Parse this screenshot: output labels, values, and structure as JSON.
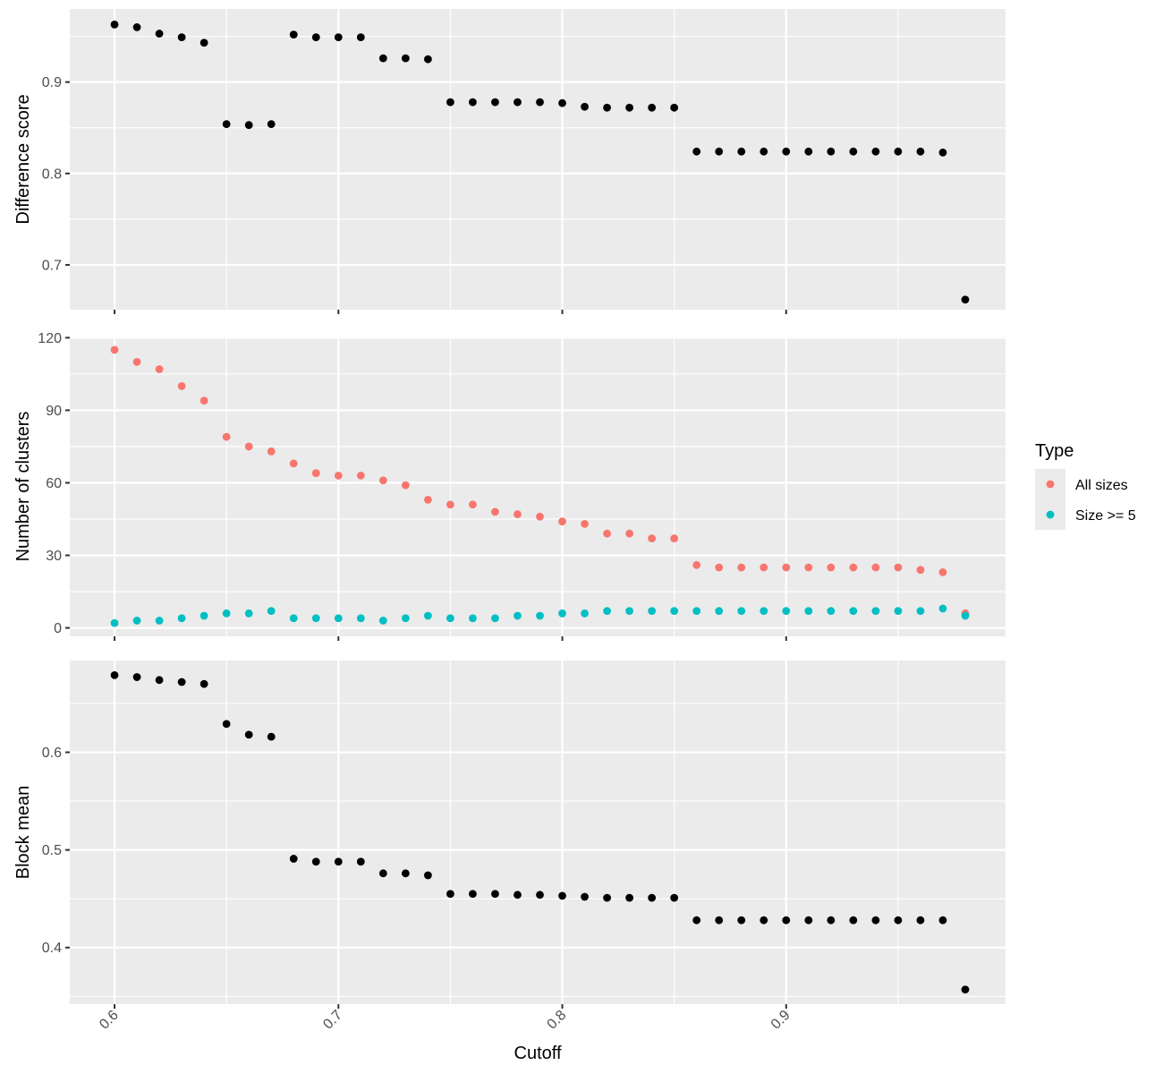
{
  "chart_data": [
    {
      "type": "scatter",
      "panel": "top",
      "ylabel": "Difference score",
      "xlim": [
        0.58,
        0.998
      ],
      "ylim": [
        0.651,
        0.98
      ],
      "xticks": [
        0.6,
        0.7,
        0.8,
        0.9
      ],
      "yticks": [
        0.7,
        0.8,
        0.9
      ],
      "series": [
        {
          "color": "#000000",
          "points": [
            [
              0.6,
              0.963
            ],
            [
              0.61,
              0.96
            ],
            [
              0.62,
              0.953
            ],
            [
              0.63,
              0.949
            ],
            [
              0.64,
              0.943
            ],
            [
              0.65,
              0.854
            ],
            [
              0.66,
              0.853
            ],
            [
              0.67,
              0.854
            ],
            [
              0.68,
              0.952
            ],
            [
              0.69,
              0.949
            ],
            [
              0.7,
              0.949
            ],
            [
              0.71,
              0.949
            ],
            [
              0.72,
              0.926
            ],
            [
              0.73,
              0.926
            ],
            [
              0.74,
              0.925
            ],
            [
              0.75,
              0.878
            ],
            [
              0.76,
              0.878
            ],
            [
              0.77,
              0.878
            ],
            [
              0.78,
              0.878
            ],
            [
              0.79,
              0.878
            ],
            [
              0.8,
              0.877
            ],
            [
              0.81,
              0.873
            ],
            [
              0.82,
              0.872
            ],
            [
              0.83,
              0.872
            ],
            [
              0.84,
              0.872
            ],
            [
              0.85,
              0.872
            ],
            [
              0.86,
              0.824
            ],
            [
              0.87,
              0.824
            ],
            [
              0.88,
              0.824
            ],
            [
              0.89,
              0.824
            ],
            [
              0.9,
              0.824
            ],
            [
              0.91,
              0.824
            ],
            [
              0.92,
              0.824
            ],
            [
              0.93,
              0.824
            ],
            [
              0.94,
              0.824
            ],
            [
              0.95,
              0.824
            ],
            [
              0.96,
              0.824
            ],
            [
              0.97,
              0.823
            ],
            [
              0.98,
              0.662
            ]
          ]
        }
      ]
    },
    {
      "type": "scatter",
      "panel": "middle",
      "ylabel": "Number of clusters",
      "xlim": [
        0.58,
        0.998
      ],
      "ylim": [
        -3.5,
        120.5
      ],
      "xticks": [
        0.6,
        0.7,
        0.8,
        0.9
      ],
      "yticks": [
        0,
        30,
        60,
        90,
        120
      ],
      "series": [
        {
          "name": "All sizes",
          "color": "#F8766D",
          "points": [
            [
              0.6,
              115
            ],
            [
              0.61,
              110
            ],
            [
              0.62,
              107
            ],
            [
              0.63,
              100
            ],
            [
              0.64,
              94
            ],
            [
              0.65,
              79
            ],
            [
              0.66,
              75
            ],
            [
              0.67,
              73
            ],
            [
              0.68,
              68
            ],
            [
              0.69,
              64
            ],
            [
              0.7,
              63
            ],
            [
              0.71,
              63
            ],
            [
              0.72,
              61
            ],
            [
              0.73,
              59
            ],
            [
              0.74,
              53
            ],
            [
              0.75,
              51
            ],
            [
              0.76,
              51
            ],
            [
              0.77,
              48
            ],
            [
              0.78,
              47
            ],
            [
              0.79,
              46
            ],
            [
              0.8,
              44
            ],
            [
              0.81,
              43
            ],
            [
              0.82,
              39
            ],
            [
              0.83,
              39
            ],
            [
              0.84,
              37
            ],
            [
              0.85,
              37
            ],
            [
              0.86,
              26
            ],
            [
              0.87,
              25
            ],
            [
              0.88,
              25
            ],
            [
              0.89,
              25
            ],
            [
              0.9,
              25
            ],
            [
              0.91,
              25
            ],
            [
              0.92,
              25
            ],
            [
              0.93,
              25
            ],
            [
              0.94,
              25
            ],
            [
              0.95,
              25
            ],
            [
              0.96,
              24
            ],
            [
              0.97,
              23
            ],
            [
              0.98,
              6
            ]
          ]
        },
        {
          "name": "Size >= 5",
          "color": "#00BFC4",
          "points": [
            [
              0.6,
              2
            ],
            [
              0.61,
              3
            ],
            [
              0.62,
              3
            ],
            [
              0.63,
              4
            ],
            [
              0.64,
              5
            ],
            [
              0.65,
              6
            ],
            [
              0.66,
              6
            ],
            [
              0.67,
              7
            ],
            [
              0.68,
              4
            ],
            [
              0.69,
              4
            ],
            [
              0.7,
              4
            ],
            [
              0.71,
              4
            ],
            [
              0.72,
              3
            ],
            [
              0.73,
              4
            ],
            [
              0.74,
              5
            ],
            [
              0.75,
              4
            ],
            [
              0.76,
              4
            ],
            [
              0.77,
              4
            ],
            [
              0.78,
              5
            ],
            [
              0.79,
              5
            ],
            [
              0.8,
              6
            ],
            [
              0.81,
              6
            ],
            [
              0.82,
              7
            ],
            [
              0.83,
              7
            ],
            [
              0.84,
              7
            ],
            [
              0.85,
              7
            ],
            [
              0.86,
              7
            ],
            [
              0.87,
              7
            ],
            [
              0.88,
              7
            ],
            [
              0.89,
              7
            ],
            [
              0.9,
              7
            ],
            [
              0.91,
              7
            ],
            [
              0.92,
              7
            ],
            [
              0.93,
              7
            ],
            [
              0.94,
              7
            ],
            [
              0.95,
              7
            ],
            [
              0.96,
              7
            ],
            [
              0.97,
              8
            ],
            [
              0.98,
              5
            ]
          ]
        }
      ]
    },
    {
      "type": "scatter",
      "panel": "bottom",
      "ylabel": "Block mean",
      "xlabel": "Cutoff",
      "xlim": [
        0.58,
        0.998
      ],
      "ylim": [
        0.342,
        0.694
      ],
      "xticks": [
        0.6,
        0.7,
        0.8,
        0.9
      ],
      "yticks": [
        0.4,
        0.5,
        0.6
      ],
      "series": [
        {
          "color": "#000000",
          "points": [
            [
              0.6,
              0.679
            ],
            [
              0.61,
              0.677
            ],
            [
              0.62,
              0.674
            ],
            [
              0.63,
              0.672
            ],
            [
              0.64,
              0.67
            ],
            [
              0.65,
              0.629
            ],
            [
              0.66,
              0.618
            ],
            [
              0.67,
              0.616
            ],
            [
              0.68,
              0.491
            ],
            [
              0.69,
              0.488
            ],
            [
              0.7,
              0.488
            ],
            [
              0.71,
              0.488
            ],
            [
              0.72,
              0.476
            ],
            [
              0.73,
              0.476
            ],
            [
              0.74,
              0.474
            ],
            [
              0.75,
              0.455
            ],
            [
              0.76,
              0.455
            ],
            [
              0.77,
              0.455
            ],
            [
              0.78,
              0.454
            ],
            [
              0.79,
              0.454
            ],
            [
              0.8,
              0.453
            ],
            [
              0.81,
              0.452
            ],
            [
              0.82,
              0.451
            ],
            [
              0.83,
              0.451
            ],
            [
              0.84,
              0.451
            ],
            [
              0.85,
              0.451
            ],
            [
              0.86,
              0.428
            ],
            [
              0.87,
              0.428
            ],
            [
              0.88,
              0.428
            ],
            [
              0.89,
              0.428
            ],
            [
              0.9,
              0.428
            ],
            [
              0.91,
              0.428
            ],
            [
              0.92,
              0.428
            ],
            [
              0.93,
              0.428
            ],
            [
              0.94,
              0.428
            ],
            [
              0.95,
              0.428
            ],
            [
              0.96,
              0.428
            ],
            [
              0.97,
              0.428
            ],
            [
              0.98,
              0.357
            ]
          ]
        }
      ]
    }
  ],
  "legend": {
    "title": "Type",
    "position": "right",
    "items": [
      {
        "label": "All sizes",
        "color": "#F8766D"
      },
      {
        "label": "Size >= 5",
        "color": "#00BFC4"
      }
    ]
  }
}
